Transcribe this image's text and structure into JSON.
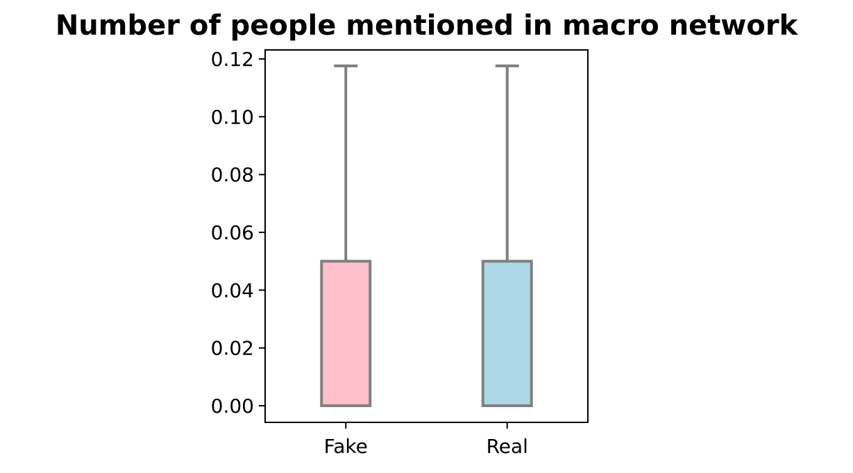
{
  "chart_data": {
    "type": "box",
    "title": "Number of people mentioned in macro network",
    "xlabel": "",
    "ylabel": "",
    "categories": [
      "Fake",
      "Real"
    ],
    "ylim": [
      -0.006,
      0.1235
    ],
    "yticks": [
      "0.00",
      "0.02",
      "0.04",
      "0.06",
      "0.08",
      "0.10",
      "0.12"
    ],
    "ytick_values": [
      0.0,
      0.02,
      0.04,
      0.06,
      0.08,
      0.1,
      0.12
    ],
    "boxes": [
      {
        "category": "Fake",
        "whisker_low": 0.0,
        "q1": 0.0,
        "median": 0.0,
        "q3": 0.05,
        "whisker_high": 0.1176,
        "fill": "#ffc0cb"
      },
      {
        "category": "Real",
        "whisker_low": 0.0,
        "q1": 0.0,
        "median": 0.0,
        "q3": 0.05,
        "whisker_high": 0.1176,
        "fill": "#add8e6"
      }
    ],
    "line_color": "#808080",
    "grid": false,
    "legend": "none"
  }
}
